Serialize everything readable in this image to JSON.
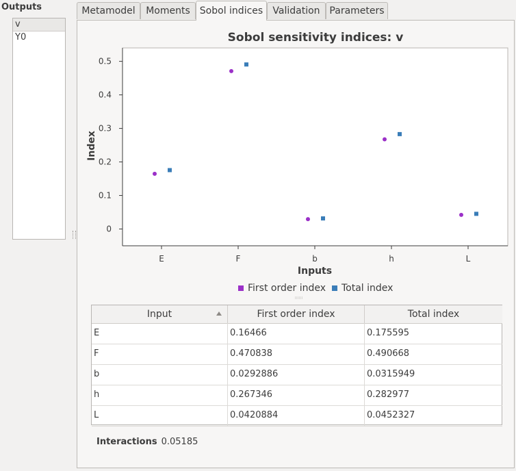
{
  "outputs": {
    "label": "Outputs",
    "items": [
      "v",
      "Y0"
    ],
    "selected": "v"
  },
  "tabs": [
    "Metamodel",
    "Moments",
    "Sobol indices",
    "Validation",
    "Parameters"
  ],
  "active_tab": "Sobol indices",
  "chart_data": {
    "type": "scatter",
    "title": "Sobol sensitivity indices: v",
    "xlabel": "Inputs",
    "ylabel": "Index",
    "categories": [
      "E",
      "F",
      "b",
      "h",
      "L"
    ],
    "series": [
      {
        "name": "First order index",
        "color": "#9b30c8",
        "marker": "circle",
        "values": [
          0.16466,
          0.470838,
          0.0292886,
          0.267346,
          0.0420884
        ]
      },
      {
        "name": "Total index",
        "color": "#3a7db8",
        "marker": "square",
        "values": [
          0.175595,
          0.490668,
          0.0315949,
          0.282977,
          0.0452327
        ]
      }
    ],
    "ylim": [
      -0.05,
      0.54
    ],
    "yticks": [
      "0",
      "0.1",
      "0.2",
      "0.3",
      "0.4",
      "0.5"
    ],
    "grid": false,
    "legend": "bottom"
  },
  "table": {
    "columns": [
      "Input",
      "First order index",
      "Total index"
    ],
    "rows": [
      [
        "E",
        "0.16466",
        "0.175595"
      ],
      [
        "F",
        "0.470838",
        "0.490668"
      ],
      [
        "b",
        "0.0292886",
        "0.0315949"
      ],
      [
        "h",
        "0.267346",
        "0.282977"
      ],
      [
        "L",
        "0.0420884",
        "0.0452327"
      ]
    ]
  },
  "interactions": {
    "label": "Interactions",
    "value": "0.05185"
  }
}
